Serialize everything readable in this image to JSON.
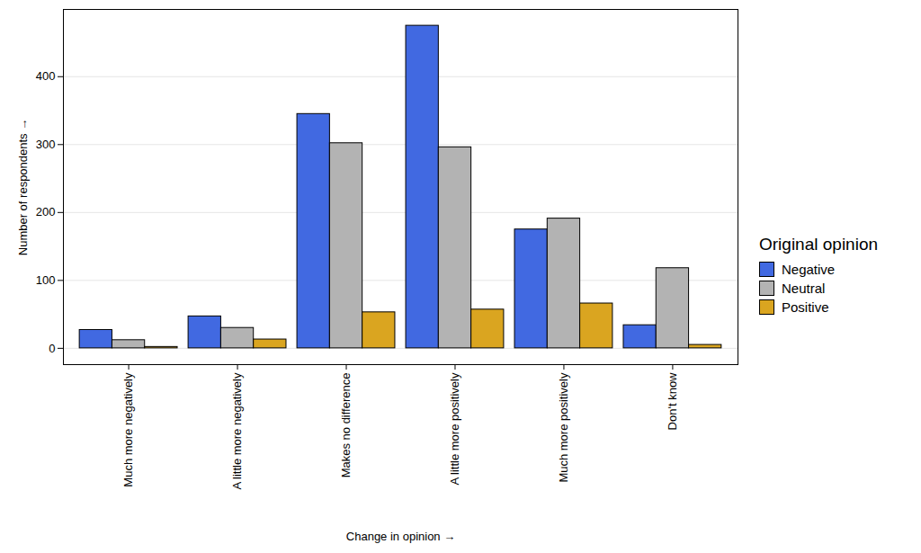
{
  "chart_data": {
    "type": "bar",
    "x_label": "Change in opinion",
    "y_label": "Number of respondents",
    "categories": [
      "Much more negatively",
      "A little more negatively",
      "Makes no difference",
      "A little more positively",
      "Much more positively",
      "Don't know"
    ],
    "series": [
      {
        "name": "Negative",
        "color": "#4169E1",
        "values": [
          27,
          47,
          345,
          475,
          175,
          34
        ]
      },
      {
        "name": "Neutral",
        "color": "#B3B3B3",
        "values": [
          12,
          30,
          302,
          296,
          191,
          118
        ]
      },
      {
        "name": "Positive",
        "color": "#DAA520",
        "values": [
          2,
          13,
          53,
          57,
          66,
          5
        ]
      }
    ],
    "ylim": [
      -24,
      499
    ],
    "yticks": [
      0,
      100,
      200,
      300,
      400
    ],
    "grid": true,
    "legend": "right",
    "legend_title": "Original opinion"
  }
}
